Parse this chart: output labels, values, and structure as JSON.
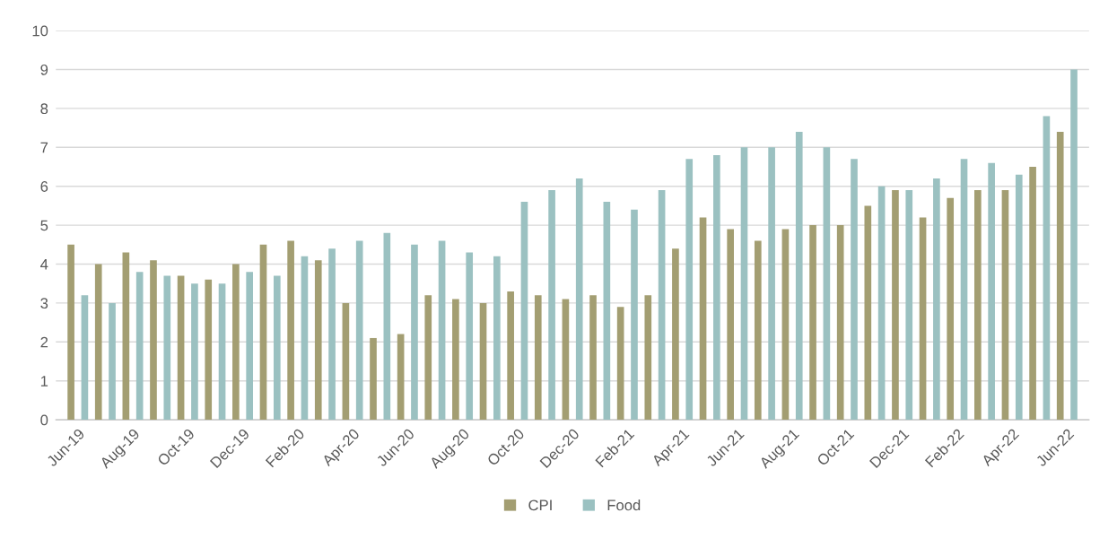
{
  "chart_data": {
    "type": "bar",
    "categories": [
      "Jun-19",
      null,
      "Aug-19",
      null,
      "Oct-19",
      null,
      "Dec-19",
      null,
      "Feb-20",
      null,
      "Apr-20",
      null,
      "Jun-20",
      null,
      "Aug-20",
      null,
      "Oct-20",
      null,
      "Dec-20",
      null,
      "Feb-21",
      null,
      "Apr-21",
      null,
      "Jun-21",
      null,
      "Aug-21",
      null,
      "Oct-21",
      null,
      "Dec-21",
      null,
      "Feb-22",
      null,
      "Apr-22",
      null,
      "Jun-22"
    ],
    "series": [
      {
        "name": "CPI",
        "color": "#a39e72",
        "values": [
          4.5,
          4.0,
          4.3,
          4.1,
          3.7,
          3.6,
          4.0,
          4.5,
          4.6,
          4.1,
          3.0,
          2.1,
          2.2,
          3.2,
          3.1,
          3.0,
          3.3,
          3.2,
          3.1,
          3.2,
          2.9,
          3.2,
          4.4,
          5.2,
          4.9,
          4.6,
          4.9,
          5.0,
          5.0,
          5.5,
          5.9,
          5.2,
          5.7,
          5.9,
          5.9,
          6.5,
          7.4
        ]
      },
      {
        "name": "Food",
        "color": "#9bc1c1",
        "values": [
          3.2,
          3.0,
          3.8,
          3.7,
          3.5,
          3.5,
          3.8,
          3.7,
          4.2,
          4.4,
          4.6,
          4.8,
          4.5,
          4.6,
          4.3,
          4.2,
          5.6,
          5.9,
          6.2,
          5.6,
          5.4,
          5.9,
          6.7,
          6.8,
          7.0,
          7.0,
          7.4,
          7.0,
          6.7,
          6.0,
          5.9,
          6.2,
          6.7,
          6.6,
          6.3,
          7.8,
          9.0
        ]
      }
    ],
    "ylim": [
      0,
      10
    ],
    "yticks": [
      0,
      1,
      2,
      3,
      4,
      5,
      6,
      7,
      8,
      9,
      10
    ],
    "grid": "y",
    "legend": "bottom"
  }
}
